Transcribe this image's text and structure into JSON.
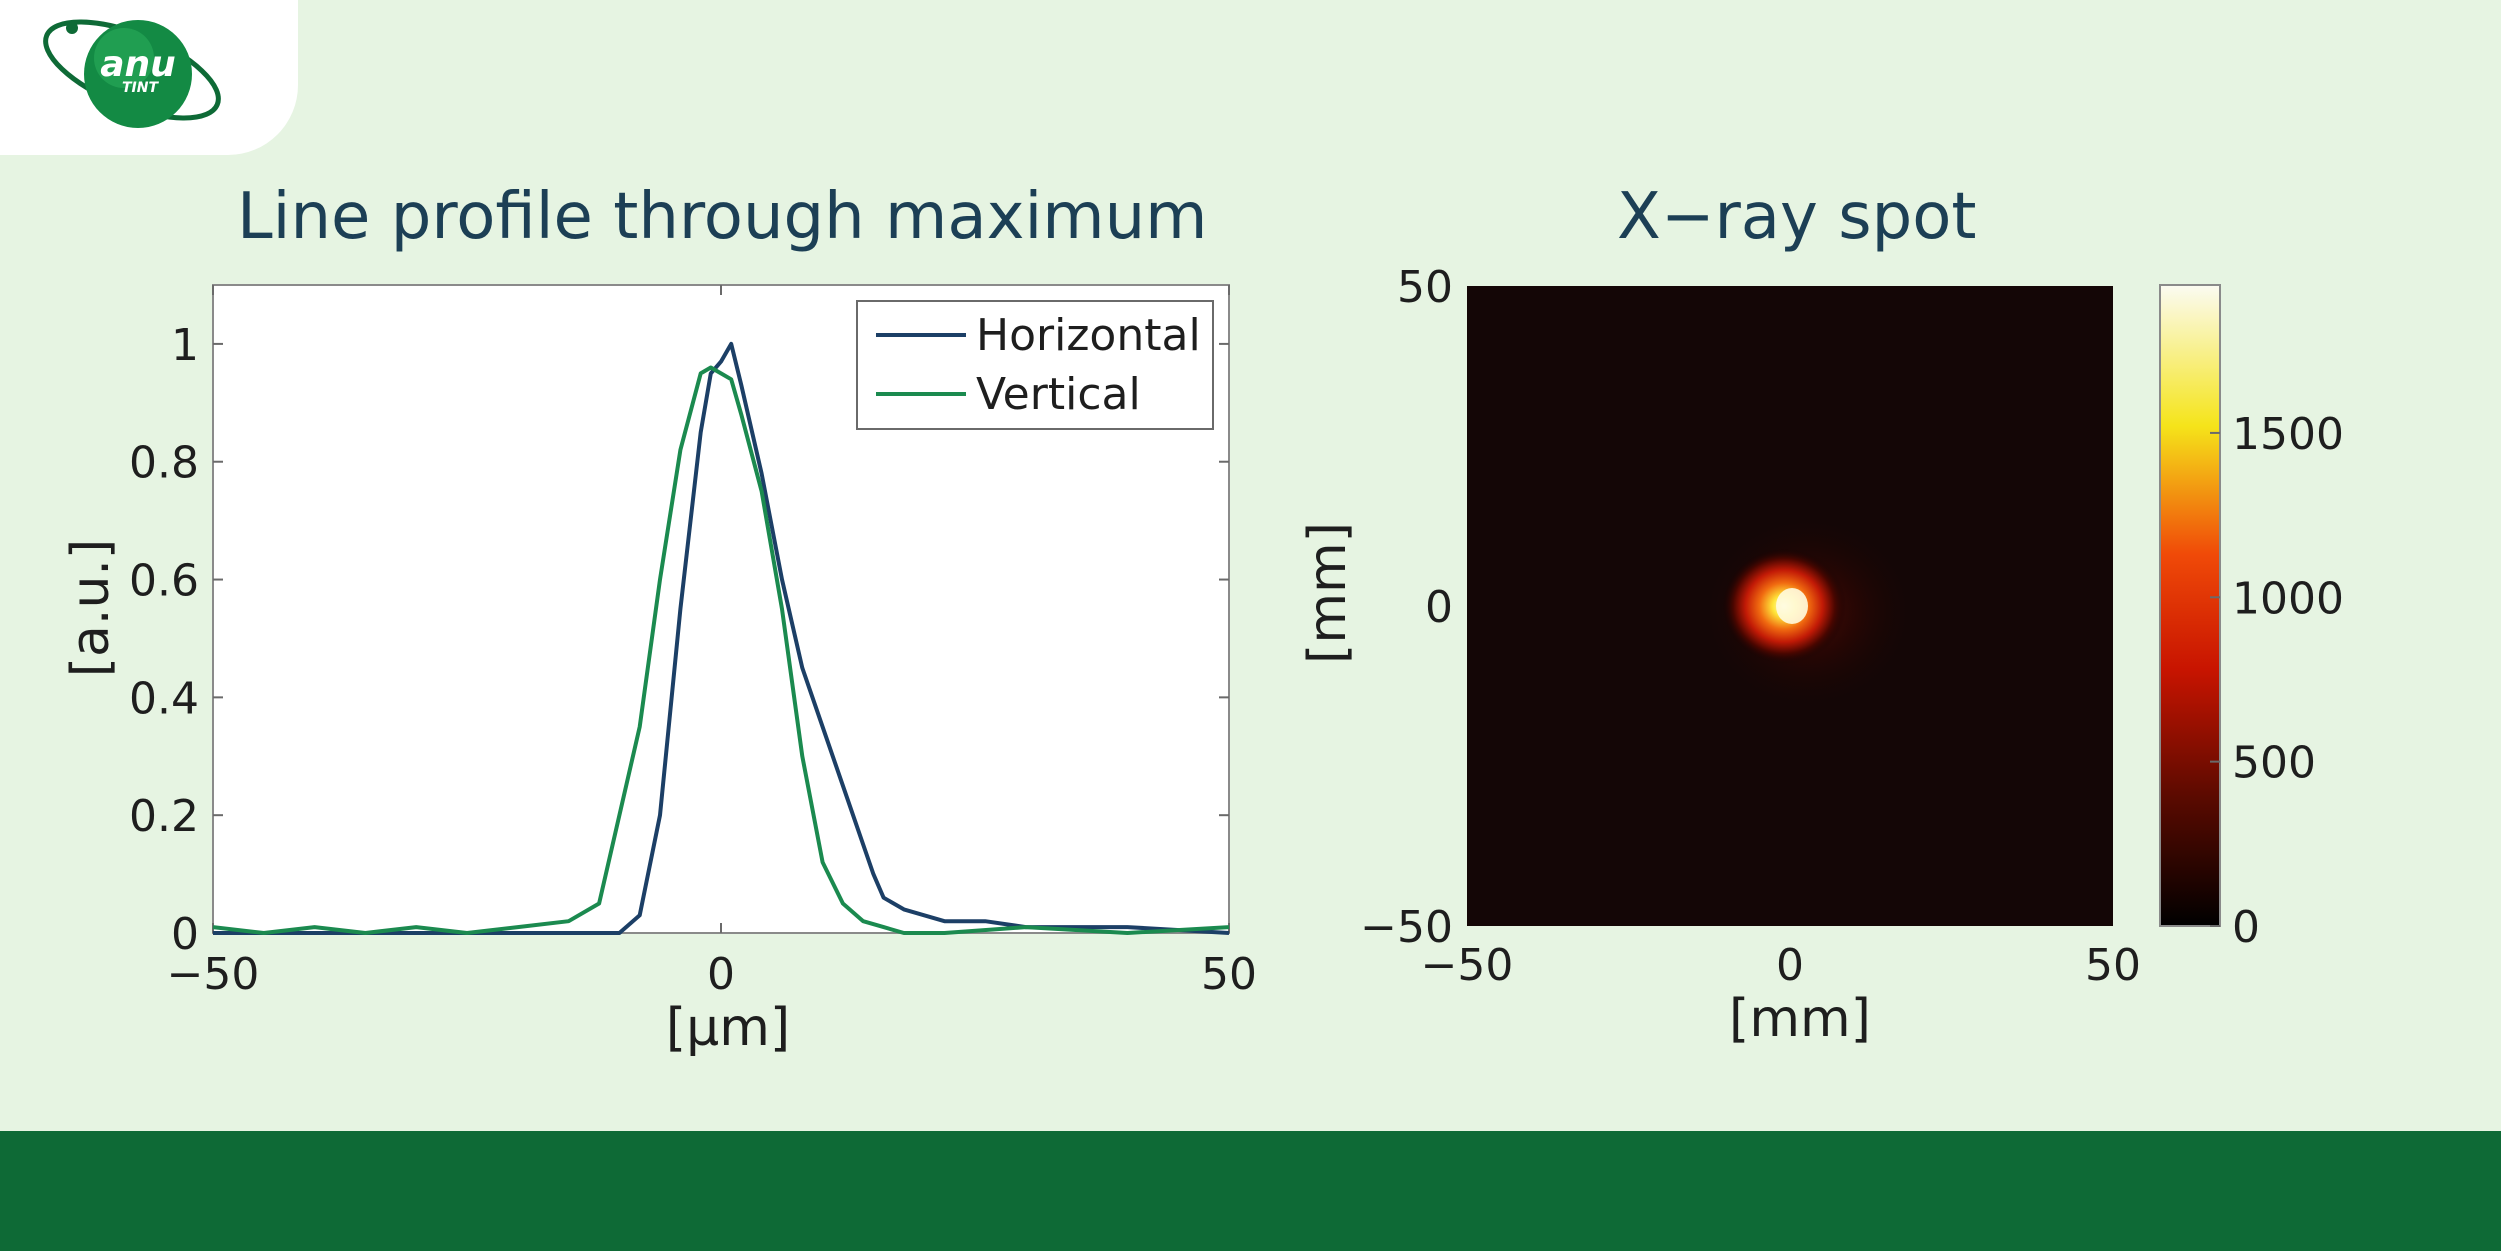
{
  "logo": {
    "text_main": "anu",
    "text_sub": "TINT"
  },
  "colors": {
    "background": "#e6f4e2",
    "footer": "#0e6a36",
    "title": "#1c3f55",
    "horizontal": "#1c3f66",
    "vertical": "#1b8a4f"
  },
  "chart_data": [
    {
      "type": "line",
      "title": "Line profile through maximum",
      "xlabel": "[μm]",
      "ylabel": "[a.u.]",
      "xlim": [
        -50,
        50
      ],
      "ylim": [
        0,
        1.1
      ],
      "xticks": [
        -50,
        0,
        50
      ],
      "xtick_labels": [
        "−50",
        "0",
        "50"
      ],
      "yticks": [
        0,
        0.2,
        0.4,
        0.6,
        0.8,
        1
      ],
      "ytick_labels": [
        "0",
        "0.2",
        "0.4",
        "0.6",
        "0.8",
        "1"
      ],
      "legend_position": "top-right",
      "grid": false,
      "series": [
        {
          "name": "Horizontal",
          "color": "#1c3f66",
          "x": [
            -50,
            -42,
            -30,
            -20,
            -14,
            -10,
            -8,
            -6,
            -4,
            -2,
            -1,
            0,
            1,
            2,
            4,
            6,
            8,
            10,
            12,
            14,
            15,
            16,
            17,
            18,
            20,
            22,
            26,
            30,
            40,
            50
          ],
          "y": [
            0,
            0,
            0,
            0,
            0,
            0,
            0.03,
            0.2,
            0.55,
            0.85,
            0.95,
            0.97,
            1.0,
            0.93,
            0.78,
            0.6,
            0.45,
            0.35,
            0.25,
            0.15,
            0.1,
            0.06,
            0.05,
            0.04,
            0.03,
            0.02,
            0.02,
            0.01,
            0.01,
            0
          ]
        },
        {
          "name": "Vertical",
          "color": "#1b8a4f",
          "x": [
            -50,
            -45,
            -40,
            -35,
            -30,
            -25,
            -20,
            -15,
            -12,
            -10,
            -8,
            -6,
            -4,
            -2,
            -1,
            0,
            1,
            2,
            4,
            6,
            8,
            10,
            12,
            14,
            16,
            18,
            22,
            30,
            40,
            50
          ],
          "y": [
            0.01,
            0,
            0.01,
            0,
            0.01,
            0,
            0.01,
            0.02,
            0.05,
            0.2,
            0.35,
            0.6,
            0.82,
            0.95,
            0.96,
            0.95,
            0.94,
            0.88,
            0.75,
            0.55,
            0.3,
            0.12,
            0.05,
            0.02,
            0.01,
            0,
            0,
            0.01,
            0,
            0.01
          ]
        }
      ]
    },
    {
      "type": "heatmap",
      "title": "X−ray spot",
      "xlabel": "[mm]",
      "ylabel": "[mm]",
      "xlim": [
        -50,
        50
      ],
      "ylim": [
        -50,
        50
      ],
      "xtick_labels": [
        "−50",
        "0",
        "50"
      ],
      "ytick_labels": [
        "50",
        "0",
        "−50"
      ],
      "colormap": "hot",
      "colorbar_range": [
        0,
        1950
      ],
      "colorbar_ticks": [
        0,
        500,
        1000,
        1500
      ],
      "colorbar_tick_labels": [
        "0",
        "500",
        "1000",
        "1500"
      ],
      "spot": {
        "center_x": 0,
        "center_y": 0,
        "peak": 1950
      }
    }
  ]
}
